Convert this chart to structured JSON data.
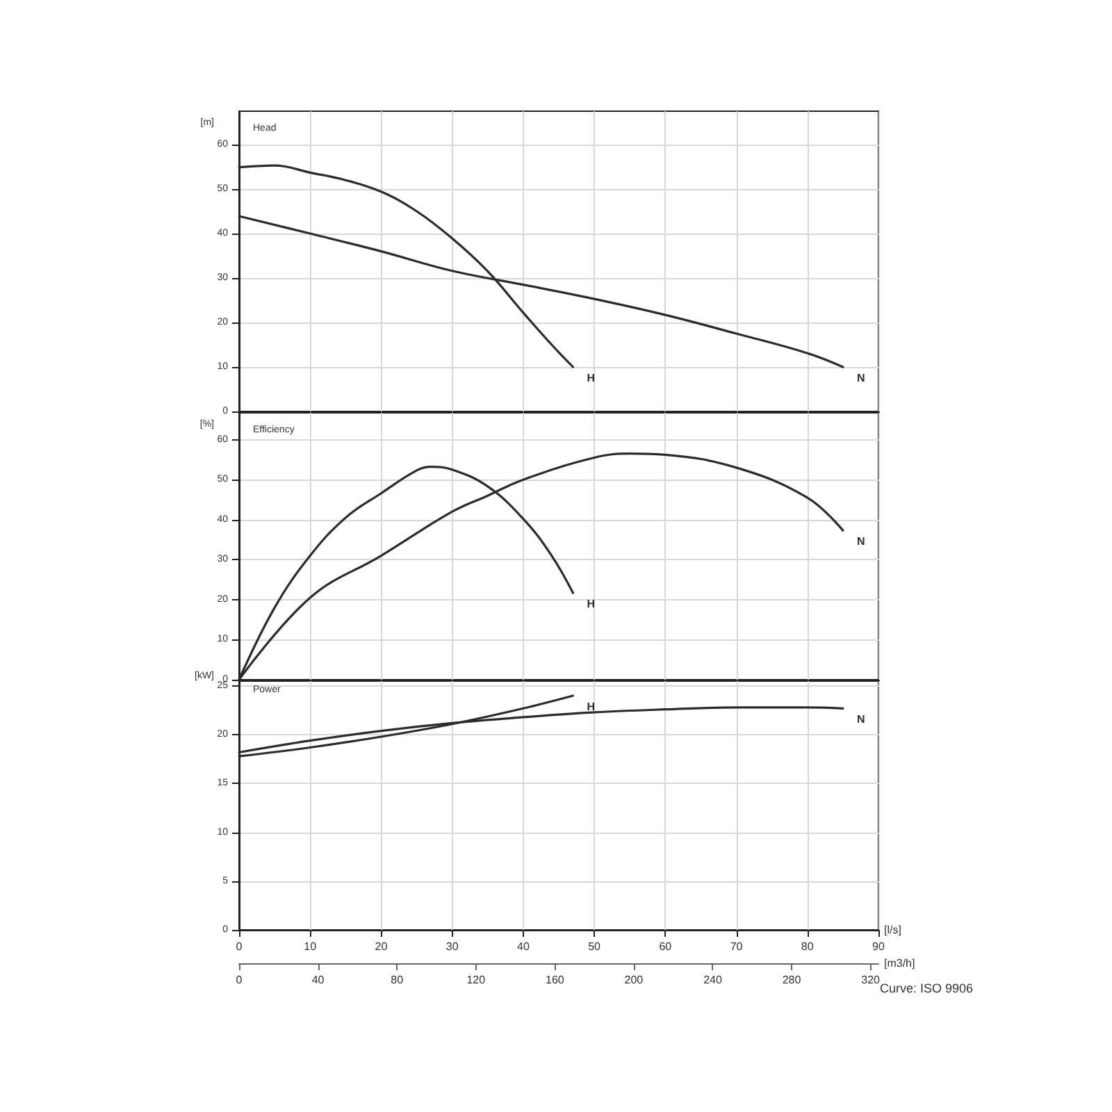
{
  "chart_data": [
    {
      "type": "line",
      "title": "Head",
      "ylabel": "[m]",
      "xlim": [
        0,
        90
      ],
      "xticks": [
        0,
        10,
        20,
        30,
        40,
        50,
        60,
        70,
        80,
        90
      ],
      "ylim": [
        0,
        67.5
      ],
      "yticks": [
        0,
        10,
        20,
        30,
        40,
        50,
        60
      ],
      "grid": true,
      "tick_labels": "y",
      "legend": false,
      "marker": "none",
      "line_style": "solid",
      "series": [
        {
          "name": "H",
          "color": "#2b2b2b",
          "x": [
            0,
            5,
            10,
            15,
            20,
            25,
            30,
            35,
            40,
            44,
            47
          ],
          "values": [
            54.9,
            55.3,
            53.7,
            52,
            49.4,
            45,
            38.9,
            31.5,
            22.2,
            15,
            10
          ]
        },
        {
          "name": "N",
          "color": "#2b2b2b",
          "x": [
            0,
            10,
            20,
            30,
            40,
            50,
            60,
            70,
            80,
            85
          ],
          "values": [
            43.9,
            40,
            36,
            31.6,
            28.5,
            25.3,
            21.7,
            17.5,
            13.1,
            10
          ]
        }
      ]
    },
    {
      "type": "line",
      "title": "Efficiency",
      "ylabel": "[%]",
      "xlim": [
        0,
        90
      ],
      "xticks": [
        0,
        10,
        20,
        30,
        40,
        50,
        60,
        70,
        80,
        90
      ],
      "ylim": [
        0,
        66.7
      ],
      "yticks": [
        0,
        10,
        20,
        30,
        40,
        50,
        60
      ],
      "grid": true,
      "tick_labels": "y",
      "legend": false,
      "marker": "none",
      "line_style": "solid",
      "series": [
        {
          "name": "H",
          "color": "#2b2b2b",
          "x": [
            0,
            5,
            10,
            15,
            20,
            25,
            27,
            30,
            35,
            40,
            44,
            47
          ],
          "values": [
            0,
            18,
            31,
            40.5,
            46.6,
            52.3,
            53.2,
            52.5,
            48.3,
            40.2,
            31,
            21.7
          ]
        },
        {
          "name": "N",
          "color": "#2b2b2b",
          "x": [
            0,
            10,
            20,
            30,
            35,
            40,
            50,
            55,
            60,
            70,
            80,
            85
          ],
          "values": [
            0,
            20.5,
            31,
            42,
            46,
            50,
            55.5,
            56.5,
            56.2,
            53,
            45.5,
            37.3
          ]
        }
      ]
    },
    {
      "type": "line",
      "title": "Power",
      "ylabel": "[kW]",
      "xlabel": "[l/s]",
      "x2label": "[m3/h]",
      "xlim": [
        0,
        90
      ],
      "xticks": [
        0,
        10,
        20,
        30,
        40,
        50,
        60,
        70,
        80,
        90
      ],
      "x2lim": [
        0,
        324
      ],
      "x2ticks": [
        0,
        40,
        80,
        120,
        160,
        200,
        240,
        280,
        320
      ],
      "ylim": [
        0,
        25.5
      ],
      "yticks": [
        0,
        5,
        10,
        15,
        20,
        25
      ],
      "grid": true,
      "legend": false,
      "marker": "none",
      "line_style": "solid",
      "annotations": [
        "Curve: ISO 9906"
      ],
      "series": [
        {
          "name": "H",
          "color": "#2b2b2b",
          "x": [
            0,
            10,
            20,
            30,
            40,
            47
          ],
          "values": [
            17.8,
            18.7,
            19.8,
            21.1,
            22.7,
            24
          ]
        },
        {
          "name": "N",
          "color": "#2b2b2b",
          "x": [
            0,
            10,
            20,
            30,
            40,
            50,
            60,
            70,
            80,
            85
          ],
          "values": [
            18.2,
            19.4,
            20.4,
            21.2,
            21.8,
            22.3,
            22.6,
            22.8,
            22.8,
            22.7
          ]
        }
      ]
    }
  ]
}
